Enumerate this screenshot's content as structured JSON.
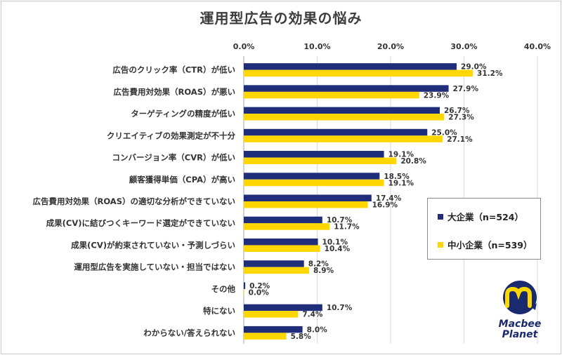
{
  "chart_data": {
    "type": "bar",
    "orientation": "horizontal",
    "title": "運用型広告の効果の悩み",
    "xlim": [
      0,
      40
    ],
    "xticks": [
      "0.0%",
      "10.0%",
      "20.0%",
      "30.0%",
      "40.0%"
    ],
    "grid": true,
    "legend_position": "right",
    "categories": [
      "広告のクリック率（CTR）が低い",
      "広告費用対効果（ROAS）が悪い",
      "ターゲティングの精度が低い",
      "クリエイティブの効果測定が不十分",
      "コンバージョン率（CVR）が低い",
      "顧客獲得単価（CPA）が高い",
      "広告費用対効果（ROAS）の適切な分析ができていない",
      "成果(CV)に結びつくキーワード選定ができていない",
      "成果(CV)が約束されていない・予測しづらい",
      "運用型広告を実施していない・担当ではない",
      "その他",
      "特にない",
      "わからない/答えられない"
    ],
    "series": [
      {
        "name": "大企業（n=524）",
        "color": "#1f2d7a",
        "values": [
          29.0,
          27.9,
          26.7,
          25.0,
          19.1,
          18.5,
          17.4,
          10.7,
          10.1,
          8.2,
          0.2,
          10.7,
          8.0
        ]
      },
      {
        "name": "中小企業（n=539）",
        "color": "#ffd700",
        "values": [
          31.2,
          23.9,
          27.3,
          27.1,
          20.8,
          19.1,
          16.9,
          11.7,
          10.4,
          8.9,
          0.0,
          7.4,
          5.8
        ]
      }
    ]
  },
  "logo": {
    "line1": "Macbee",
    "line2": "Planet"
  }
}
